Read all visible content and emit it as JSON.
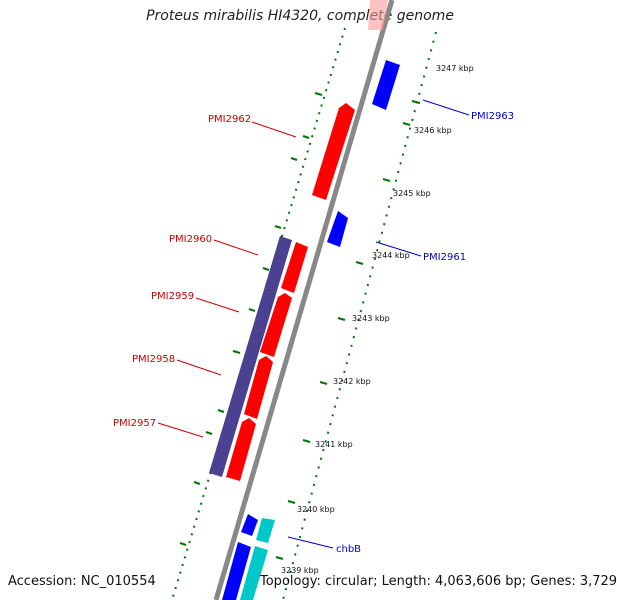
{
  "title": "Proteus mirabilis HI4320, complete genome",
  "footer": {
    "accession": "Accession: NC_010554",
    "topology": "Topology: circular; Length: 4,063,606 bp; Genes: 3,729"
  },
  "scale": {
    "ticks": [
      "3247 kbp",
      "3246 kbp",
      "3245 kbp",
      "3244 kbp",
      "3243 kbp",
      "3242 kbp",
      "3241 kbp",
      "3240 kbp",
      "3239 kbp"
    ]
  },
  "gene_labels": {
    "pmi2962": "PMI2962",
    "pmi2963": "PMI2963",
    "pmi2960": "PMI2960",
    "pmi2961": "PMI2961",
    "pmi2959": "PMI2959",
    "pmi2958": "PMI2958",
    "pmi2957": "PMI2957",
    "chbb": "chbB"
  },
  "colors": {
    "backbone": "#888888",
    "forward_cds": "#ff0000",
    "reverse_cds": "#0000ff",
    "operon": "#4a4290",
    "chb_genes": "#00c8c8",
    "gc_track": "#007700",
    "label_left": "#cc0000",
    "label_right": "#0000cc"
  }
}
